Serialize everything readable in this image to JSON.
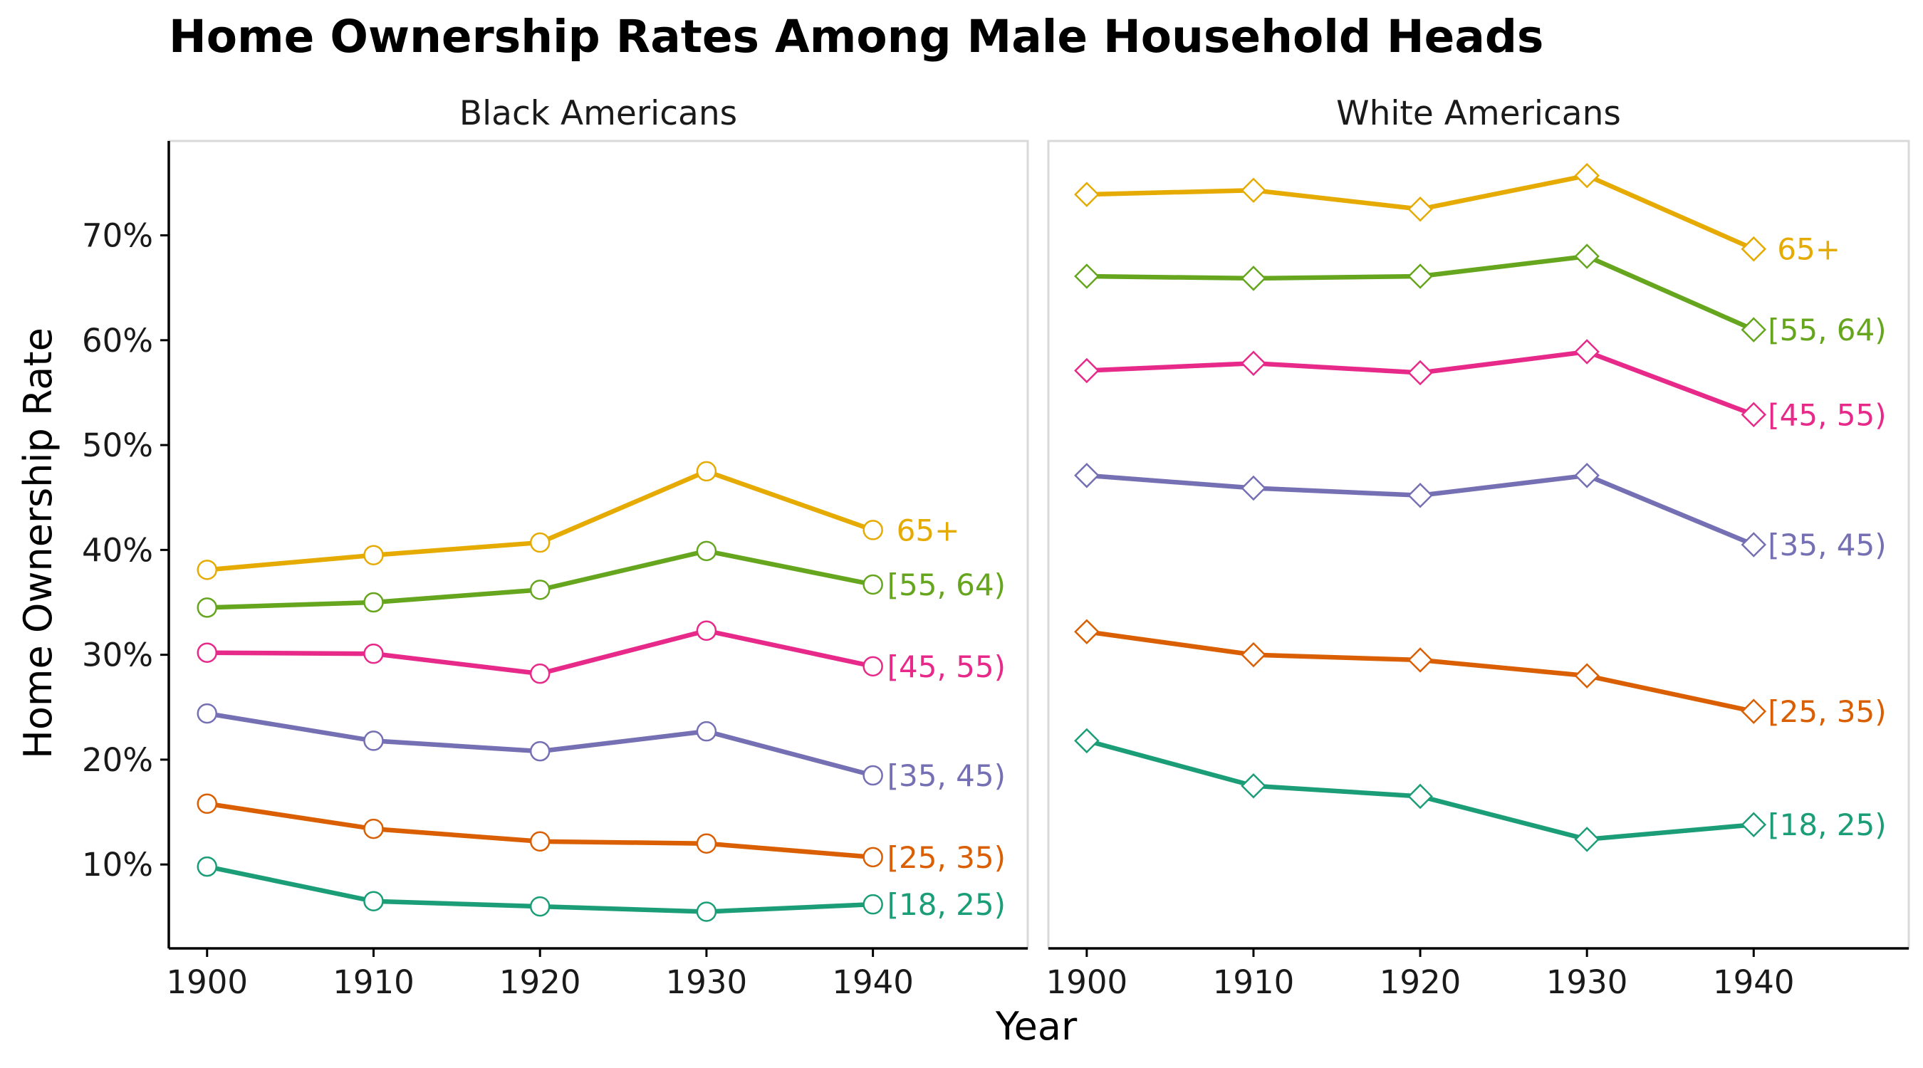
{
  "chart_data": {
    "type": "line",
    "title": "Home Ownership Rates Among Male Household Heads",
    "xlabel": "Year",
    "ylabel": "Home Ownership Rate",
    "x": [
      1900,
      1910,
      1920,
      1930,
      1940
    ],
    "x_ticks": [
      "1900",
      "1910",
      "1920",
      "1930",
      "1940"
    ],
    "xlim": [
      1897.7,
      1949.3
    ],
    "ylim": [
      2.0,
      79.0
    ],
    "y_ticks": [
      10,
      20,
      30,
      40,
      50,
      60,
      70
    ],
    "y_tick_labels": [
      "10%",
      "20%",
      "30%",
      "40%",
      "50%",
      "60%",
      "70%"
    ],
    "y_unit": "%",
    "grid": false,
    "legend": "direct labels at line ends",
    "panels": [
      {
        "name": "Black Americans",
        "marker": "circle",
        "series": [
          {
            "name": "[18, 25)",
            "color": "#1b9e77",
            "values": [
              9.8,
              6.5,
              6.0,
              5.5,
              6.2
            ]
          },
          {
            "name": "[25, 35)",
            "color": "#d95f02",
            "values": [
              15.8,
              13.4,
              12.2,
              12.0,
              10.7
            ]
          },
          {
            "name": "[35, 45)",
            "color": "#7570b3",
            "values": [
              24.4,
              21.8,
              20.8,
              22.7,
              18.5
            ]
          },
          {
            "name": "[45, 55)",
            "color": "#e7298a",
            "values": [
              30.2,
              30.1,
              28.2,
              32.3,
              28.9
            ]
          },
          {
            "name": "[55, 64)",
            "color": "#66a61e",
            "values": [
              34.5,
              35.0,
              36.2,
              39.9,
              36.7
            ]
          },
          {
            "name": "65+",
            "color": "#e6ab02",
            "values": [
              38.1,
              39.5,
              40.7,
              47.5,
              41.9
            ]
          }
        ]
      },
      {
        "name": "White Americans",
        "marker": "diamond",
        "series": [
          {
            "name": "[18, 25)",
            "color": "#1b9e77",
            "values": [
              21.8,
              17.5,
              16.5,
              12.4,
              13.8
            ]
          },
          {
            "name": "[25, 35)",
            "color": "#d95f02",
            "values": [
              32.2,
              30.0,
              29.5,
              28.0,
              24.6
            ]
          },
          {
            "name": "[35, 45)",
            "color": "#7570b3",
            "values": [
              47.1,
              45.9,
              45.2,
              47.1,
              40.5
            ]
          },
          {
            "name": "[45, 55)",
            "color": "#e7298a",
            "values": [
              57.1,
              57.8,
              56.9,
              58.9,
              52.9
            ]
          },
          {
            "name": "[55, 64)",
            "color": "#66a61e",
            "values": [
              66.1,
              65.9,
              66.1,
              68.0,
              61.0
            ]
          },
          {
            "name": "65+",
            "color": "#e6ab02",
            "values": [
              73.9,
              74.3,
              72.5,
              75.7,
              68.7
            ]
          }
        ]
      }
    ]
  }
}
